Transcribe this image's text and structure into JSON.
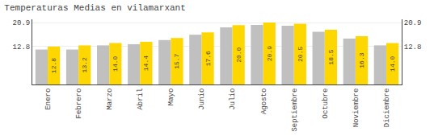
{
  "chart_data": {
    "type": "bar",
    "title": "Temperaturas Medias en vilamarxant",
    "categories": [
      "Enero",
      "Febrero",
      "Marzo",
      "Abril",
      "Mayo",
      "Junio",
      "Julio",
      "Agosto",
      "Septiembre",
      "Octubre",
      "Noviembre",
      "Diciembre"
    ],
    "series": [
      {
        "color": "#C0C0C0",
        "values": [
          11.8,
          11.8,
          13.2,
          13.6,
          15.0,
          16.8,
          19.3,
          20.1,
          19.8,
          17.8,
          15.5,
          13.2
        ]
      },
      {
        "color": "#FFD700",
        "values": [
          12.8,
          13.2,
          14.0,
          14.4,
          15.7,
          17.6,
          20.0,
          20.9,
          20.5,
          18.5,
          16.3,
          14.0
        ],
        "value_labels": [
          "12.8",
          "13.2",
          "14.0",
          "14.4",
          "15.7",
          "17.6",
          "20.0",
          "20.9",
          "20.5",
          "18.5",
          "16.3",
          "14.0"
        ],
        "data_labels": true
      }
    ],
    "ylim": [
      0,
      22.0
    ],
    "yticks": [
      12.8,
      20.9
    ],
    "y2lim": [
      0,
      22.0
    ],
    "y2ticks": [
      12.8,
      20.9
    ],
    "grid": true
  }
}
